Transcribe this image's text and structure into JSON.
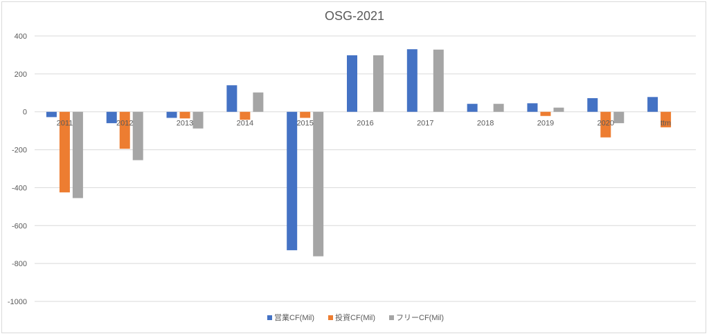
{
  "chart_data": {
    "type": "bar",
    "title": "OSG-2021",
    "xlabel": "",
    "ylabel": "",
    "categories": [
      "2011",
      "2012",
      "2013",
      "2014",
      "2015",
      "2016",
      "2017",
      "2018",
      "2019",
      "2020",
      "ttm"
    ],
    "ylim": [
      -1000,
      400
    ],
    "yticks": [
      400,
      200,
      0,
      -200,
      -400,
      -600,
      -800,
      -1000
    ],
    "grid": true,
    "legend_position": "bottom",
    "series": [
      {
        "name": "営業CF(Mil)",
        "color": "#4472C4",
        "values": [
          -28,
          -60,
          -32,
          140,
          -730,
          298,
          330,
          42,
          45,
          72,
          78
        ]
      },
      {
        "name": "投資CF(Mil)",
        "color": "#ED7D31",
        "values": [
          -425,
          -195,
          -35,
          -42,
          -32,
          0,
          0,
          0,
          -22,
          -135,
          -82
        ]
      },
      {
        "name": "フリーCF(Mil)",
        "color": "#A5A5A5",
        "values": [
          -455,
          -255,
          -88,
          102,
          -762,
          298,
          328,
          42,
          22,
          -60,
          0
        ]
      }
    ]
  }
}
